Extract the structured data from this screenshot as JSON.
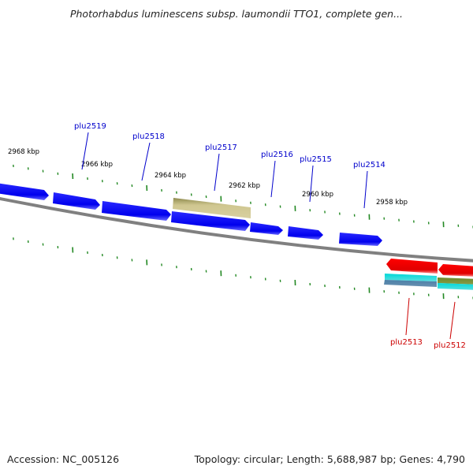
{
  "title": "Photorhabdus luminescens subsp. laumondii TTO1, complete gen...",
  "footer": {
    "accession_label": "Accession: NC_005126",
    "summary_label": "Topology: circular; Length: 5,688,987 bp; Genes: 4,790"
  },
  "colors": {
    "background": "#ffffff",
    "backbone": "#808080",
    "forward_gene": "#0000ff",
    "pseudo_gene": "#c8c088",
    "reverse_gene": "#ff0000",
    "rna_gene_cyan": "#00c8c8",
    "rna_gene_olive": "#808040",
    "tick": "#228822",
    "forward_label": "#0000cc",
    "reverse_label": "#cc0000"
  },
  "scale": {
    "unit": "kbp",
    "tick_labels": [
      "2968 kbp",
      "2966 kbp",
      "2964 kbp",
      "2962 kbp",
      "2960 kbp",
      "2958 kbp"
    ]
  },
  "genes_forward_strand": [
    {
      "label": ""
    },
    {
      "label": "plu2519"
    },
    {
      "label": "plu2518"
    },
    {
      "label": "plu2517"
    },
    {
      "label": "plu2516"
    },
    {
      "label": "plu2515"
    },
    {
      "label": "plu2514"
    }
  ],
  "genes_reverse_strand": [
    {
      "label": "plu2513"
    },
    {
      "label": "plu2512"
    }
  ]
}
